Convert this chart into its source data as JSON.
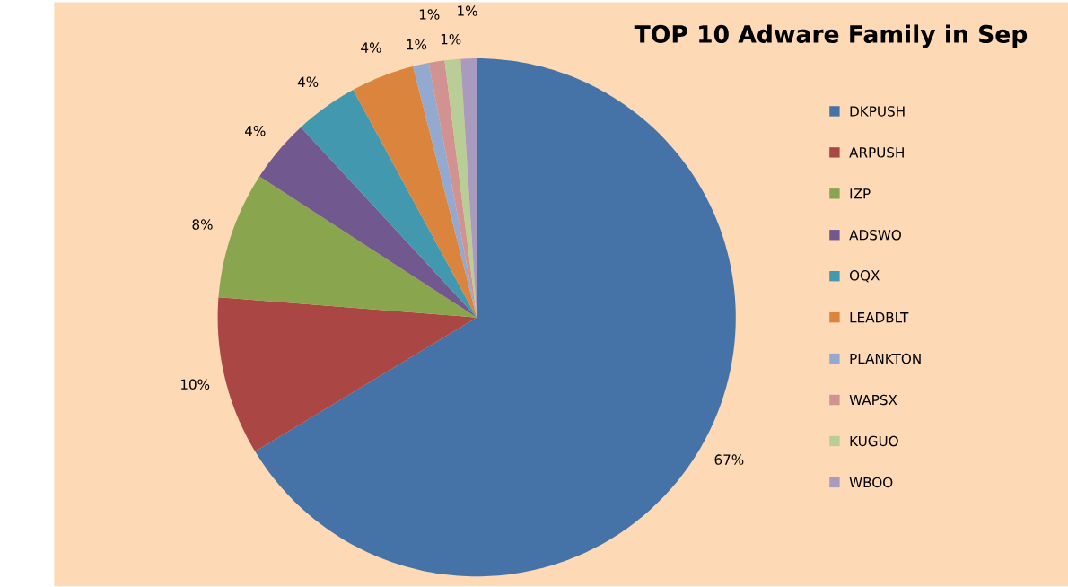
{
  "chart_data": {
    "type": "pie",
    "title": "TOP  10 Adware Family in Sep",
    "categories": [
      "DKPUSH",
      "ARPUSH",
      "IZP",
      "ADSWO",
      "OQX",
      "LEADBLT",
      "PLANKTON",
      "WAPSX",
      "KUGUO",
      "WBOO"
    ],
    "values": [
      67,
      10,
      8,
      4,
      4,
      4,
      1,
      1,
      1,
      1
    ],
    "value_labels": [
      "67%",
      "10%",
      "8%",
      "4%",
      "4%",
      "4%",
      "1%",
      "1%",
      "1%",
      "1%"
    ],
    "colors": [
      "#4572a7",
      "#aa4643",
      "#89a54e",
      "#71588f",
      "#4198af",
      "#db843d",
      "#93a9cf",
      "#d19392",
      "#b9cd96",
      "#a99bbd"
    ],
    "legend": "right"
  }
}
